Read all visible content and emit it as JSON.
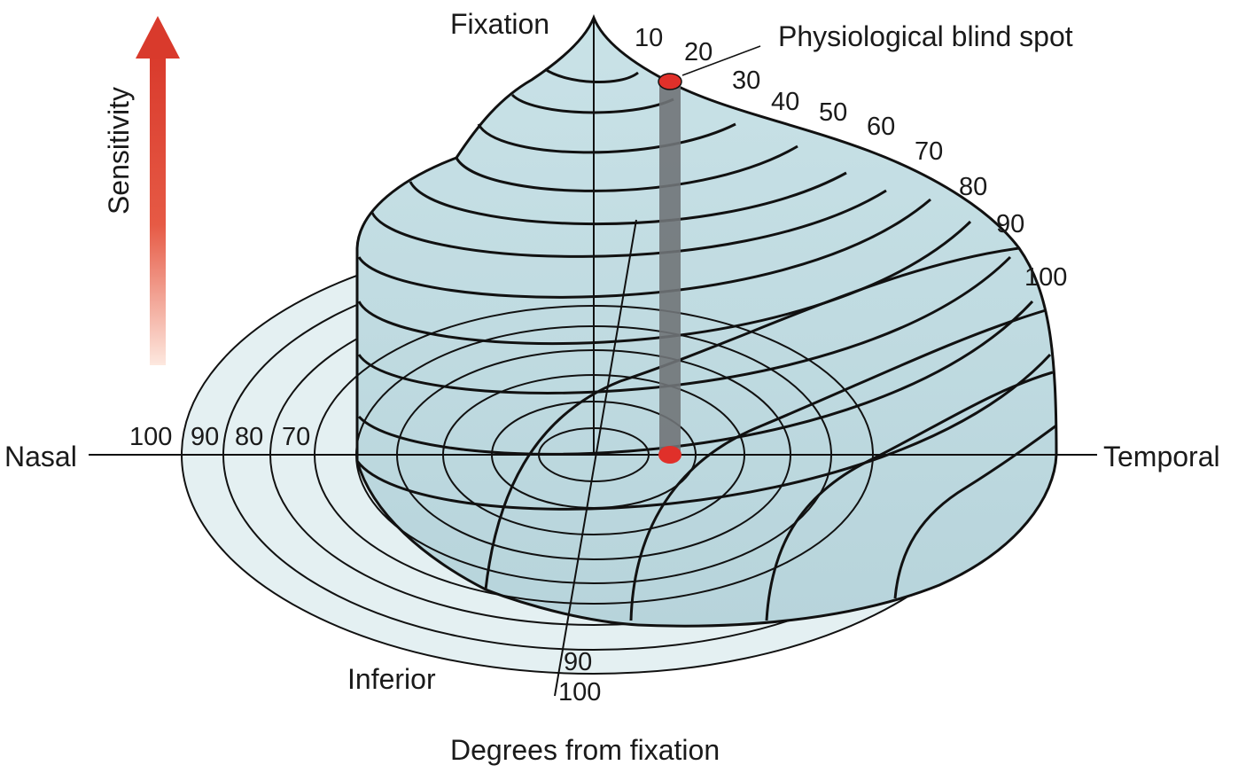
{
  "labels": {
    "fixation": "Fixation",
    "blind_spot": "Physiological blind spot",
    "sensitivity": "Sensitivity",
    "nasal": "Nasal",
    "temporal": "Temporal",
    "inferior": "Inferior",
    "degrees_caption": "Degrees from fixation"
  },
  "temporal_scale": [
    "10",
    "20",
    "30",
    "40",
    "50",
    "60",
    "70",
    "80",
    "90",
    "100"
  ],
  "nasal_scale": [
    "100",
    "90",
    "80",
    "70"
  ],
  "inferior_scale": [
    "90",
    "100"
  ],
  "colors": {
    "hill_fill": "#c2dde3",
    "base_fill": "#e4f0f2",
    "outline": "#111111",
    "blind_spot": "#e0302a",
    "blind_column": "#707478",
    "arrow_top": "#d93a2c",
    "arrow_bottom": "#fbe1d6"
  }
}
